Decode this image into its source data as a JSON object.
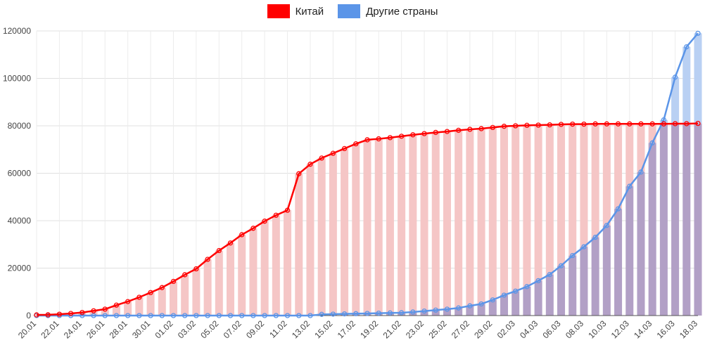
{
  "chart_data": {
    "type": "bar",
    "title": "",
    "xlabel": "",
    "ylabel": "",
    "ylim": [
      0,
      120000
    ],
    "y_ticks": [
      0,
      20000,
      40000,
      60000,
      80000,
      100000,
      120000
    ],
    "grid": true,
    "legend_position": "top-center",
    "categories": [
      "20.01",
      "21.01",
      "22.01",
      "23.01",
      "24.01",
      "25.01",
      "26.01",
      "27.01",
      "28.01",
      "29.01",
      "30.01",
      "31.01",
      "01.02",
      "02.02",
      "03.02",
      "04.02",
      "05.02",
      "06.02",
      "07.02",
      "08.02",
      "09.02",
      "10.02",
      "11.02",
      "12.02",
      "13.02",
      "14.02",
      "15.02",
      "16.02",
      "17.02",
      "18.02",
      "19.02",
      "20.02",
      "21.02",
      "22.02",
      "23.02",
      "24.02",
      "25.02",
      "26.02",
      "27.02",
      "28.02",
      "29.02",
      "01.03",
      "02.03",
      "03.03",
      "04.03",
      "05.03",
      "06.03",
      "07.03",
      "08.03",
      "09.03",
      "10.03",
      "11.03",
      "12.03",
      "13.03",
      "14.03",
      "15.03",
      "16.03",
      "17.03",
      "18.03"
    ],
    "tick_labels": [
      "20.01",
      "22.01",
      "24.01",
      "26.01",
      "28.01",
      "30.01",
      "01.02",
      "03.02",
      "05.02",
      "07.02",
      "09.02",
      "11.02",
      "13.02",
      "15.02",
      "17.02",
      "19.02",
      "21.02",
      "23.02",
      "25.02",
      "27.02",
      "29.02",
      "02.03",
      "04.03",
      "06.03",
      "08.03",
      "10.03",
      "12.03",
      "14.03",
      "16.03",
      "18.03"
    ],
    "series": [
      {
        "name": "Китай",
        "color": "#ff0000",
        "bar_color": "#f5c6c6",
        "values": [
          280,
          320,
          560,
          900,
          1300,
          2000,
          2700,
          4400,
          5900,
          7700,
          9700,
          11800,
          14400,
          17200,
          19700,
          23700,
          27400,
          30600,
          34100,
          36800,
          39800,
          42300,
          44400,
          59800,
          63800,
          66400,
          68400,
          70400,
          72400,
          74100,
          74500,
          75000,
          75600,
          76200,
          76700,
          77200,
          77600,
          78100,
          78500,
          78800,
          79300,
          79800,
          80000,
          80200,
          80300,
          80400,
          80600,
          80700,
          80700,
          80800,
          80800,
          80800,
          80800,
          80800,
          80800,
          80800,
          80900,
          80900,
          81000
        ]
      },
      {
        "name": "Другие страны",
        "color": "#5b95e8",
        "bar_color": "#b9d0f3",
        "bar_overlap_color": "#b2a0c6",
        "values": [
          0,
          0,
          0,
          0,
          0,
          0,
          0,
          0,
          0,
          0,
          0,
          0,
          0,
          0,
          0,
          0,
          0,
          0,
          0,
          0,
          0,
          0,
          0,
          0,
          0,
          500,
          600,
          700,
          800,
          900,
          1000,
          1100,
          1200,
          1500,
          1900,
          2300,
          2700,
          3200,
          4100,
          4900,
          6600,
          8600,
          10300,
          12200,
          14700,
          17300,
          21000,
          25300,
          29000,
          33000,
          38000,
          45000,
          54500,
          60500,
          72800,
          82500,
          100500,
          113300,
          119000
        ]
      }
    ]
  }
}
